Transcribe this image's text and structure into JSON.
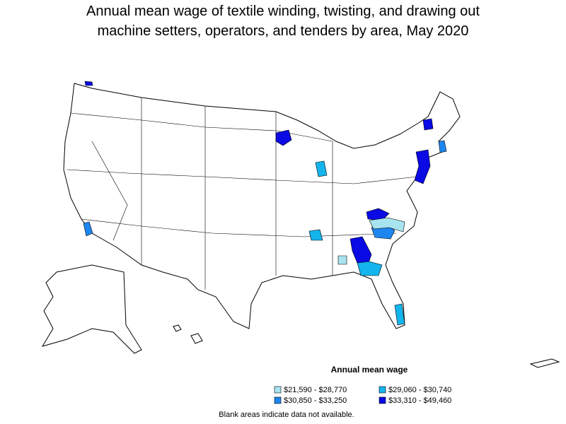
{
  "header": {
    "title": [
      "Annual mean wage of textile winding, twisting, and drawing out",
      "machine setters, operators, and tenders by area, May 2020"
    ]
  },
  "legend": {
    "title": "Annual mean wage",
    "items": [
      {
        "label": "$21,590 - $28,770",
        "color": "#a8e4f0"
      },
      {
        "label": "$29,060 - $30,740",
        "color": "#14b4ec"
      },
      {
        "label": "$30,850 - $33,250",
        "color": "#1e86f0"
      },
      {
        "label": "$33,310 - $49,460",
        "color": "#0a0ae4"
      }
    ]
  },
  "footnote": "Blank areas indicate data not available."
}
